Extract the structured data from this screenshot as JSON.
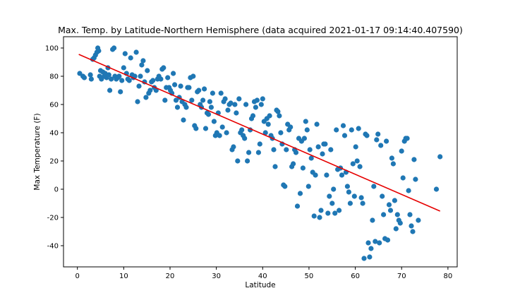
{
  "chart_data": {
    "type": "scatter",
    "title": "Max. Temp. by Latitude-Northern Hemisphere (data acquired 2021-01-17 09:14:40.407590)",
    "xlabel": "Latitude",
    "ylabel": "Max Temperature (F)",
    "xlim": [
      -3,
      82
    ],
    "ylim": [
      -55,
      108
    ],
    "xticks": [
      0,
      10,
      20,
      30,
      40,
      50,
      60,
      70,
      80
    ],
    "yticks": [
      -40,
      -20,
      0,
      20,
      40,
      60,
      80,
      100
    ],
    "grid": false,
    "legend": "none",
    "series": [
      {
        "kind": "scatter",
        "color": "#1f77b4",
        "points": [
          [
            0.5,
            82
          ],
          [
            1.2,
            80
          ],
          [
            1.5,
            79
          ],
          [
            2.8,
            81
          ],
          [
            3.0,
            78
          ],
          [
            3.3,
            92
          ],
          [
            3.6,
            93
          ],
          [
            3.9,
            95
          ],
          [
            4.2,
            97
          ],
          [
            4.4,
            100
          ],
          [
            4.6,
            98
          ],
          [
            4.8,
            80
          ],
          [
            5.0,
            84
          ],
          [
            5.2,
            78
          ],
          [
            5.5,
            83
          ],
          [
            5.8,
            80
          ],
          [
            6.0,
            82
          ],
          [
            6.3,
            79
          ],
          [
            6.6,
            86
          ],
          [
            6.8,
            81
          ],
          [
            7.0,
            70
          ],
          [
            7.3,
            78
          ],
          [
            7.6,
            99
          ],
          [
            7.9,
            100
          ],
          [
            8.1,
            80
          ],
          [
            8.4,
            78
          ],
          [
            8.7,
            79
          ],
          [
            9.0,
            80
          ],
          [
            9.3,
            69
          ],
          [
            9.6,
            77
          ],
          [
            10.0,
            86
          ],
          [
            10.3,
            96
          ],
          [
            10.6,
            82
          ],
          [
            10.9,
            78
          ],
          [
            11.2,
            77
          ],
          [
            11.5,
            93
          ],
          [
            11.8,
            81
          ],
          [
            12.1,
            79
          ],
          [
            12.4,
            80
          ],
          [
            12.7,
            97
          ],
          [
            13.0,
            62
          ],
          [
            13.3,
            73
          ],
          [
            13.6,
            80
          ],
          [
            13.9,
            88
          ],
          [
            14.2,
            91
          ],
          [
            14.5,
            76
          ],
          [
            14.8,
            65
          ],
          [
            15.1,
            84
          ],
          [
            15.4,
            68
          ],
          [
            15.7,
            70
          ],
          [
            16.0,
            76
          ],
          [
            16.3,
            77
          ],
          [
            16.6,
            72
          ],
          [
            17.0,
            70
          ],
          [
            17.3,
            78
          ],
          [
            17.6,
            80
          ],
          [
            18.0,
            78
          ],
          [
            18.3,
            85
          ],
          [
            18.6,
            86
          ],
          [
            18.9,
            63
          ],
          [
            19.2,
            72
          ],
          [
            19.5,
            79
          ],
          [
            19.8,
            72
          ],
          [
            20.1,
            70
          ],
          [
            20.4,
            68
          ],
          [
            20.7,
            82
          ],
          [
            21.0,
            74
          ],
          [
            21.3,
            63
          ],
          [
            21.6,
            58
          ],
          [
            22.0,
            65
          ],
          [
            22.3,
            73
          ],
          [
            22.6,
            62
          ],
          [
            22.9,
            49
          ],
          [
            23.2,
            60
          ],
          [
            23.5,
            58
          ],
          [
            23.8,
            72
          ],
          [
            24.1,
            72
          ],
          [
            24.4,
            79
          ],
          [
            24.7,
            63
          ],
          [
            25.0,
            80
          ],
          [
            25.3,
            45
          ],
          [
            25.6,
            43
          ],
          [
            25.9,
            69
          ],
          [
            26.2,
            70
          ],
          [
            26.5,
            60
          ],
          [
            26.8,
            58
          ],
          [
            27.1,
            63
          ],
          [
            27.4,
            71
          ],
          [
            27.7,
            43
          ],
          [
            28.0,
            54
          ],
          [
            28.3,
            53
          ],
          [
            28.6,
            62
          ],
          [
            28.9,
            58
          ],
          [
            29.2,
            68
          ],
          [
            29.5,
            48
          ],
          [
            29.8,
            38
          ],
          [
            30.1,
            40
          ],
          [
            30.4,
            54
          ],
          [
            30.7,
            38
          ],
          [
            31.0,
            68
          ],
          [
            31.3,
            44
          ],
          [
            31.6,
            62
          ],
          [
            31.9,
            64
          ],
          [
            32.2,
            40
          ],
          [
            32.5,
            56
          ],
          [
            32.8,
            60
          ],
          [
            33.1,
            61
          ],
          [
            33.4,
            28
          ],
          [
            33.7,
            30
          ],
          [
            34.0,
            60
          ],
          [
            34.3,
            54
          ],
          [
            34.6,
            20
          ],
          [
            34.9,
            64
          ],
          [
            35.2,
            40
          ],
          [
            35.5,
            42
          ],
          [
            35.8,
            38
          ],
          [
            36.1,
            36
          ],
          [
            36.4,
            60
          ],
          [
            36.7,
            20
          ],
          [
            37.0,
            26
          ],
          [
            37.3,
            42
          ],
          [
            37.6,
            50
          ],
          [
            37.9,
            52
          ],
          [
            38.2,
            62
          ],
          [
            38.5,
            58
          ],
          [
            38.8,
            63
          ],
          [
            39.1,
            26
          ],
          [
            39.4,
            32
          ],
          [
            39.7,
            60
          ],
          [
            40.0,
            64
          ],
          [
            40.3,
            48
          ],
          [
            40.6,
            40
          ],
          [
            40.9,
            50
          ],
          [
            41.2,
            46
          ],
          [
            41.5,
            52
          ],
          [
            41.8,
            38
          ],
          [
            42.1,
            36
          ],
          [
            42.4,
            28
          ],
          [
            42.7,
            16
          ],
          [
            43.0,
            56
          ],
          [
            43.3,
            55
          ],
          [
            43.6,
            52
          ],
          [
            43.9,
            40
          ],
          [
            44.2,
            32
          ],
          [
            44.5,
            3
          ],
          [
            44.8,
            2
          ],
          [
            45.1,
            28
          ],
          [
            45.4,
            46
          ],
          [
            45.7,
            42
          ],
          [
            46.0,
            44
          ],
          [
            46.3,
            16
          ],
          [
            46.6,
            18
          ],
          [
            46.9,
            28
          ],
          [
            47.2,
            26
          ],
          [
            47.5,
            -12
          ],
          [
            47.8,
            36
          ],
          [
            48.1,
            -3
          ],
          [
            48.4,
            34
          ],
          [
            48.7,
            15
          ],
          [
            49.0,
            36
          ],
          [
            49.3,
            48
          ],
          [
            49.6,
            42
          ],
          [
            49.9,
            2
          ],
          [
            50.2,
            28
          ],
          [
            50.5,
            22
          ],
          [
            50.8,
            12
          ],
          [
            51.1,
            -19
          ],
          [
            51.4,
            10
          ],
          [
            51.7,
            46
          ],
          [
            52.0,
            30
          ],
          [
            52.3,
            -20
          ],
          [
            52.6,
            -15
          ],
          [
            52.9,
            25
          ],
          [
            53.2,
            32
          ],
          [
            53.5,
            32
          ],
          [
            53.8,
            10
          ],
          [
            54.1,
            -17
          ],
          [
            54.4,
            -5
          ],
          [
            54.7,
            28
          ],
          [
            55.0,
            -10
          ],
          [
            55.3,
            0
          ],
          [
            55.6,
            -17
          ],
          [
            55.9,
            42
          ],
          [
            56.2,
            14
          ],
          [
            56.5,
            -15
          ],
          [
            56.8,
            15
          ],
          [
            57.1,
            10
          ],
          [
            57.4,
            45
          ],
          [
            57.7,
            38
          ],
          [
            58.0,
            12
          ],
          [
            58.3,
            2
          ],
          [
            58.6,
            -2
          ],
          [
            58.9,
            -10
          ],
          [
            59.2,
            42
          ],
          [
            59.5,
            18
          ],
          [
            59.8,
            -5
          ],
          [
            60.1,
            30
          ],
          [
            60.4,
            20
          ],
          [
            60.7,
            43
          ],
          [
            61.0,
            16
          ],
          [
            61.3,
            -6
          ],
          [
            61.6,
            -10
          ],
          [
            61.9,
            -49
          ],
          [
            62.2,
            39
          ],
          [
            62.5,
            38
          ],
          [
            62.8,
            -38
          ],
          [
            63.1,
            -48
          ],
          [
            63.4,
            -42
          ],
          [
            63.7,
            -22
          ],
          [
            64.0,
            2
          ],
          [
            64.3,
            -37
          ],
          [
            64.6,
            35
          ],
          [
            64.9,
            39
          ],
          [
            65.2,
            -38
          ],
          [
            65.5,
            31
          ],
          [
            65.8,
            -5
          ],
          [
            66.1,
            -18
          ],
          [
            66.4,
            -35
          ],
          [
            66.7,
            34
          ],
          [
            67.0,
            -36
          ],
          [
            67.3,
            -11
          ],
          [
            67.6,
            -15
          ],
          [
            67.9,
            22
          ],
          [
            68.2,
            18
          ],
          [
            68.5,
            -8
          ],
          [
            68.8,
            -28
          ],
          [
            69.1,
            -18
          ],
          [
            69.4,
            -22
          ],
          [
            69.7,
            -24
          ],
          [
            70.0,
            27
          ],
          [
            70.3,
            8
          ],
          [
            70.6,
            34
          ],
          [
            70.9,
            36
          ],
          [
            71.2,
            36
          ],
          [
            71.5,
            -1
          ],
          [
            71.8,
            -18
          ],
          [
            72.1,
            -26
          ],
          [
            72.4,
            -30
          ],
          [
            72.7,
            21
          ],
          [
            73.0,
            7
          ],
          [
            73.6,
            -22
          ],
          [
            77.5,
            0
          ],
          [
            78.3,
            23
          ]
        ]
      },
      {
        "kind": "line",
        "color": "#e60000",
        "x": [
          0.3,
          78.3
        ],
        "y": [
          95.5,
          -15.5
        ]
      }
    ]
  }
}
